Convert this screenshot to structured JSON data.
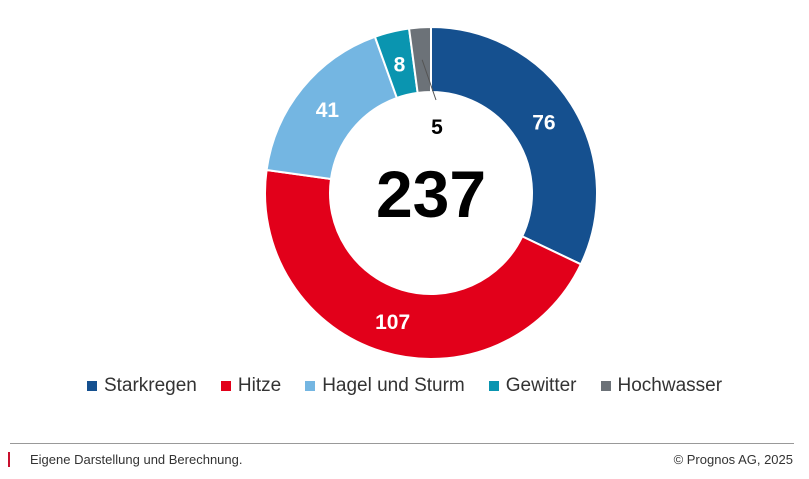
{
  "chart_data": {
    "type": "pie",
    "donut": true,
    "total_label": "237",
    "categories": [
      "Starkregen",
      "Hitze",
      "Hagel und Sturm",
      "Gewitter",
      "Hochwasser"
    ],
    "values": [
      76,
      107,
      41,
      8,
      5
    ],
    "colors": [
      "#15508f",
      "#e2001a",
      "#74b6e2",
      "#0a95b0",
      "#6c7278"
    ],
    "legend_position": "bottom"
  },
  "footer": {
    "source": "Eigene Darstellung und Berechnung.",
    "copyright": "© Prognos AG, 2025"
  }
}
